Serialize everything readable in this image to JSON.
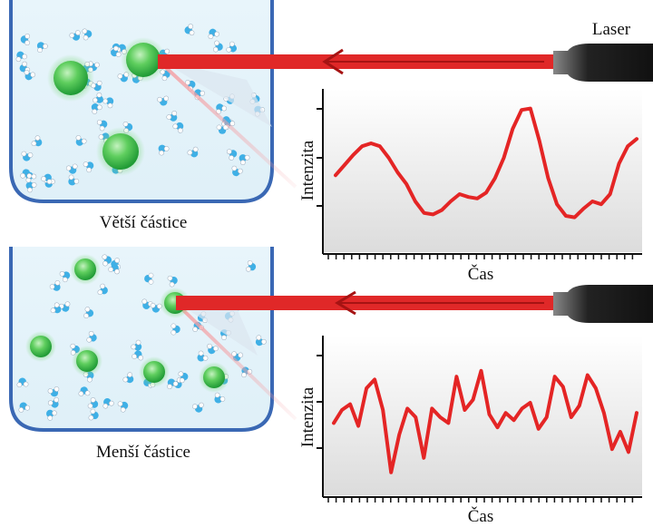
{
  "laser_label": "Laser",
  "top_panel": {
    "caption": "Větší částice",
    "chart_data": {
      "type": "line",
      "xlabel": "Čas",
      "ylabel": "Intenzita",
      "series": [
        {
          "values": [
            0.48,
            0.55,
            0.62,
            0.68,
            0.7,
            0.68,
            0.6,
            0.5,
            0.42,
            0.3,
            0.22,
            0.21,
            0.24,
            0.3,
            0.35,
            0.33,
            0.32,
            0.36,
            0.46,
            0.6,
            0.8,
            0.93,
            0.94,
            0.72,
            0.46,
            0.28,
            0.2,
            0.19,
            0.25,
            0.3,
            0.28,
            0.35,
            0.56,
            0.68,
            0.73
          ]
        }
      ]
    }
  },
  "bottom_panel": {
    "caption": "Menší částice",
    "chart_data": {
      "type": "line",
      "xlabel": "Čas",
      "ylabel": "Intenzita",
      "series": [
        {
          "values": [
            0.46,
            0.55,
            0.59,
            0.44,
            0.7,
            0.76,
            0.55,
            0.12,
            0.38,
            0.56,
            0.5,
            0.22,
            0.56,
            0.5,
            0.46,
            0.78,
            0.55,
            0.62,
            0.82,
            0.52,
            0.43,
            0.53,
            0.48,
            0.56,
            0.6,
            0.42,
            0.5,
            0.78,
            0.71,
            0.5,
            0.58,
            0.79,
            0.7,
            0.53,
            0.28,
            0.4,
            0.26,
            0.53
          ]
        }
      ]
    }
  }
}
